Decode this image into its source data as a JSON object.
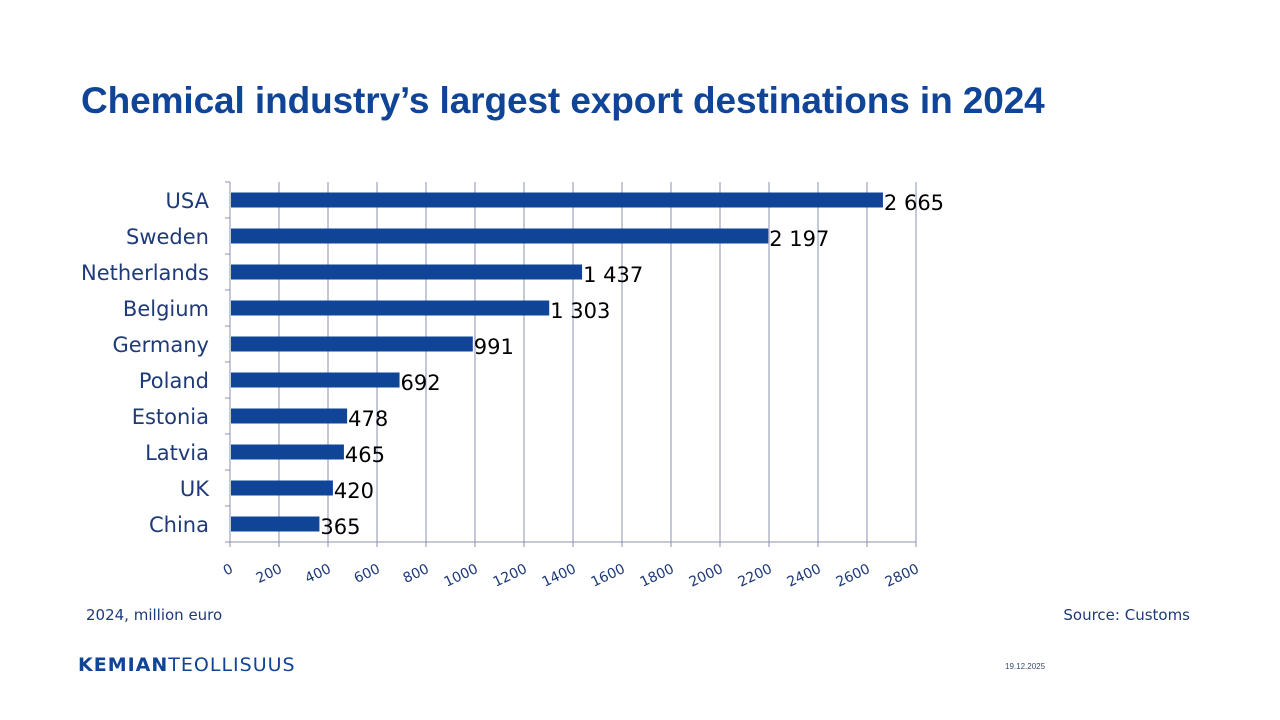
{
  "slide": {
    "title": "Chemical industry’s largest export destinations in 2024",
    "note_left": "2024, million euro",
    "note_right": "Source: Customs",
    "logo_bold": "KEMIAN",
    "logo_light": "TEOLLISUUS",
    "date": "19.12.2025"
  },
  "colors": {
    "bar": "#0f4496",
    "grid": "#8a90b0",
    "title": "#0f4496",
    "label": "#1f3a78",
    "data_label": "#000000"
  },
  "chart_data": {
    "type": "bar",
    "orientation": "horizontal",
    "title": "Chemical industry’s largest export destinations in 2024",
    "xlabel": "",
    "ylabel": "",
    "unit": "million euro",
    "categories": [
      "USA",
      "Sweden",
      "Netherlands",
      "Belgium",
      "Germany",
      "Poland",
      "Estonia",
      "Latvia",
      "UK",
      "China"
    ],
    "values": [
      2665,
      2197,
      1437,
      1303,
      991,
      692,
      478,
      465,
      420,
      365
    ],
    "value_labels": [
      "2 665",
      "2 197",
      "1 437",
      "1 303",
      "991",
      "692",
      "478",
      "465",
      "420",
      "365"
    ],
    "xlim": [
      0,
      2800
    ],
    "x_ticks": [
      0,
      200,
      400,
      600,
      800,
      1000,
      1200,
      1400,
      1600,
      1800,
      2000,
      2200,
      2400,
      2600,
      2800
    ],
    "grid": "vertical",
    "legend": "none"
  }
}
